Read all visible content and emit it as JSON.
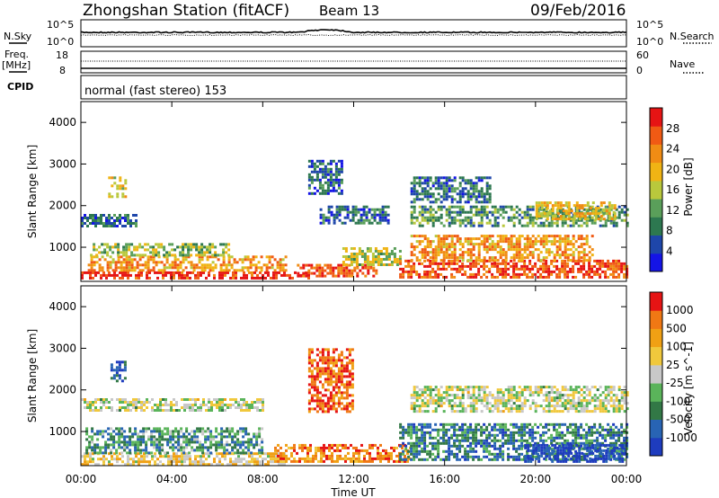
{
  "header": {
    "title": "Zhongshan Station (fitACF)",
    "beam": "Beam 13",
    "date": "09/Feb/2016"
  },
  "panels": {
    "nsky": {
      "label": "N.Sky",
      "ticks": [
        "10^5",
        "10^0"
      ]
    },
    "nsearch": {
      "label": "N.Search",
      "ticks": [
        "10^5",
        "10^0"
      ]
    },
    "freq": {
      "label_line1": "Freq.",
      "label_line2": "[MHz]",
      "ticks": [
        "18",
        "8"
      ]
    },
    "nave": {
      "label": "Nave",
      "ticks": [
        "60",
        "0"
      ]
    },
    "cpid": {
      "label": "CPID",
      "text": "normal (fast stereo) 153"
    }
  },
  "x_axis": {
    "label": "Time UT",
    "ticks": [
      "00:00",
      "04:00",
      "08:00",
      "12:00",
      "16:00",
      "20:00",
      "00:00"
    ]
  },
  "chart_data": [
    {
      "type": "heatmap",
      "name": "power",
      "xlabel": "",
      "ylabel": "Slant Range [km]",
      "xlim": [
        0,
        24
      ],
      "ylim": [
        180,
        4500
      ],
      "yticks": [
        "1000",
        "2000",
        "3000",
        "4000"
      ],
      "colorbar": {
        "label": "Power [dB]",
        "ticks": [
          "28",
          "24",
          "20",
          "16",
          "12",
          "8",
          "4"
        ],
        "colors": [
          "#1414e6",
          "#1e46aa",
          "#2d7850",
          "#5a9f5a",
          "#b9c83c",
          "#f0b414",
          "#f08c14",
          "#f05a14",
          "#e61414"
        ]
      },
      "regions": [
        {
          "t0": 0.0,
          "t1": 10.0,
          "r0": 230,
          "r1": 420,
          "level": 0.93
        },
        {
          "t0": 0.3,
          "t1": 9.0,
          "r0": 420,
          "r1": 800,
          "level": 0.7
        },
        {
          "t0": 0.4,
          "t1": 6.5,
          "r0": 800,
          "r1": 1100,
          "level": 0.45
        },
        {
          "t0": 0.0,
          "t1": 2.4,
          "r0": 1500,
          "r1": 1800,
          "level": 0.25
        },
        {
          "t0": 1.2,
          "t1": 2.0,
          "r0": 2200,
          "r1": 2700,
          "level": 0.5
        },
        {
          "t0": 9.5,
          "t1": 13.0,
          "r0": 300,
          "r1": 600,
          "level": 0.85
        },
        {
          "t0": 11.5,
          "t1": 14.0,
          "r0": 600,
          "r1": 1000,
          "level": 0.5
        },
        {
          "t0": 10.5,
          "t1": 13.5,
          "r0": 1600,
          "r1": 2000,
          "level": 0.25
        },
        {
          "t0": 14.0,
          "t1": 24.0,
          "r0": 300,
          "r1": 700,
          "level": 0.85
        },
        {
          "t0": 14.5,
          "t1": 22.5,
          "r0": 700,
          "r1": 1300,
          "level": 0.7
        },
        {
          "t0": 14.5,
          "t1": 24.0,
          "r0": 1500,
          "r1": 2000,
          "level": 0.35
        },
        {
          "t0": 20.0,
          "t1": 23.5,
          "r0": 1700,
          "r1": 2100,
          "level": 0.6
        },
        {
          "t0": 14.5,
          "t1": 18.0,
          "r0": 2100,
          "r1": 2700,
          "level": 0.25
        },
        {
          "t0": 10.0,
          "t1": 11.5,
          "r0": 2300,
          "r1": 3100,
          "level": 0.2
        }
      ]
    },
    {
      "type": "heatmap",
      "name": "velocity",
      "xlabel": "Time UT",
      "ylabel": "Slant Range [km]",
      "xlim": [
        0,
        24
      ],
      "ylim": [
        180,
        4500
      ],
      "yticks": [
        "1000",
        "2000",
        "3000",
        "4000"
      ],
      "colorbar": {
        "label": "Velocity [m s^-1]",
        "ticks": [
          "1000",
          "500",
          "100",
          "25",
          "-25",
          "-100",
          "-500",
          "-1000"
        ],
        "colors": [
          "#1e3cbe",
          "#2864b4",
          "#327846",
          "#5ab45a",
          "#c8c8c8",
          "#f0c83c",
          "#f0a014",
          "#f07814",
          "#e61414"
        ]
      },
      "regions": [
        {
          "t0": 0.0,
          "t1": 9.0,
          "r0": 230,
          "r1": 500,
          "level": 0.6
        },
        {
          "t0": 0.2,
          "t1": 8.0,
          "r0": 500,
          "r1": 1100,
          "level": 0.3
        },
        {
          "t0": 8.5,
          "t1": 14.5,
          "r0": 250,
          "r1": 700,
          "level": 0.8
        },
        {
          "t0": 10.0,
          "t1": 12.0,
          "r0": 1500,
          "r1": 3000,
          "level": 0.85
        },
        {
          "t0": 14.0,
          "t1": 24.0,
          "r0": 300,
          "r1": 1200,
          "level": 0.25
        },
        {
          "t0": 19.5,
          "t1": 24.0,
          "r0": 300,
          "r1": 700,
          "level": 0.05
        },
        {
          "t0": 14.5,
          "t1": 24.0,
          "r0": 1500,
          "r1": 2100,
          "level": 0.5
        },
        {
          "t0": 0.0,
          "t1": 8.0,
          "r0": 1500,
          "r1": 1800,
          "level": 0.5
        },
        {
          "t0": 1.3,
          "t1": 1.9,
          "r0": 2200,
          "r1": 2700,
          "level": 0.1
        }
      ]
    }
  ]
}
